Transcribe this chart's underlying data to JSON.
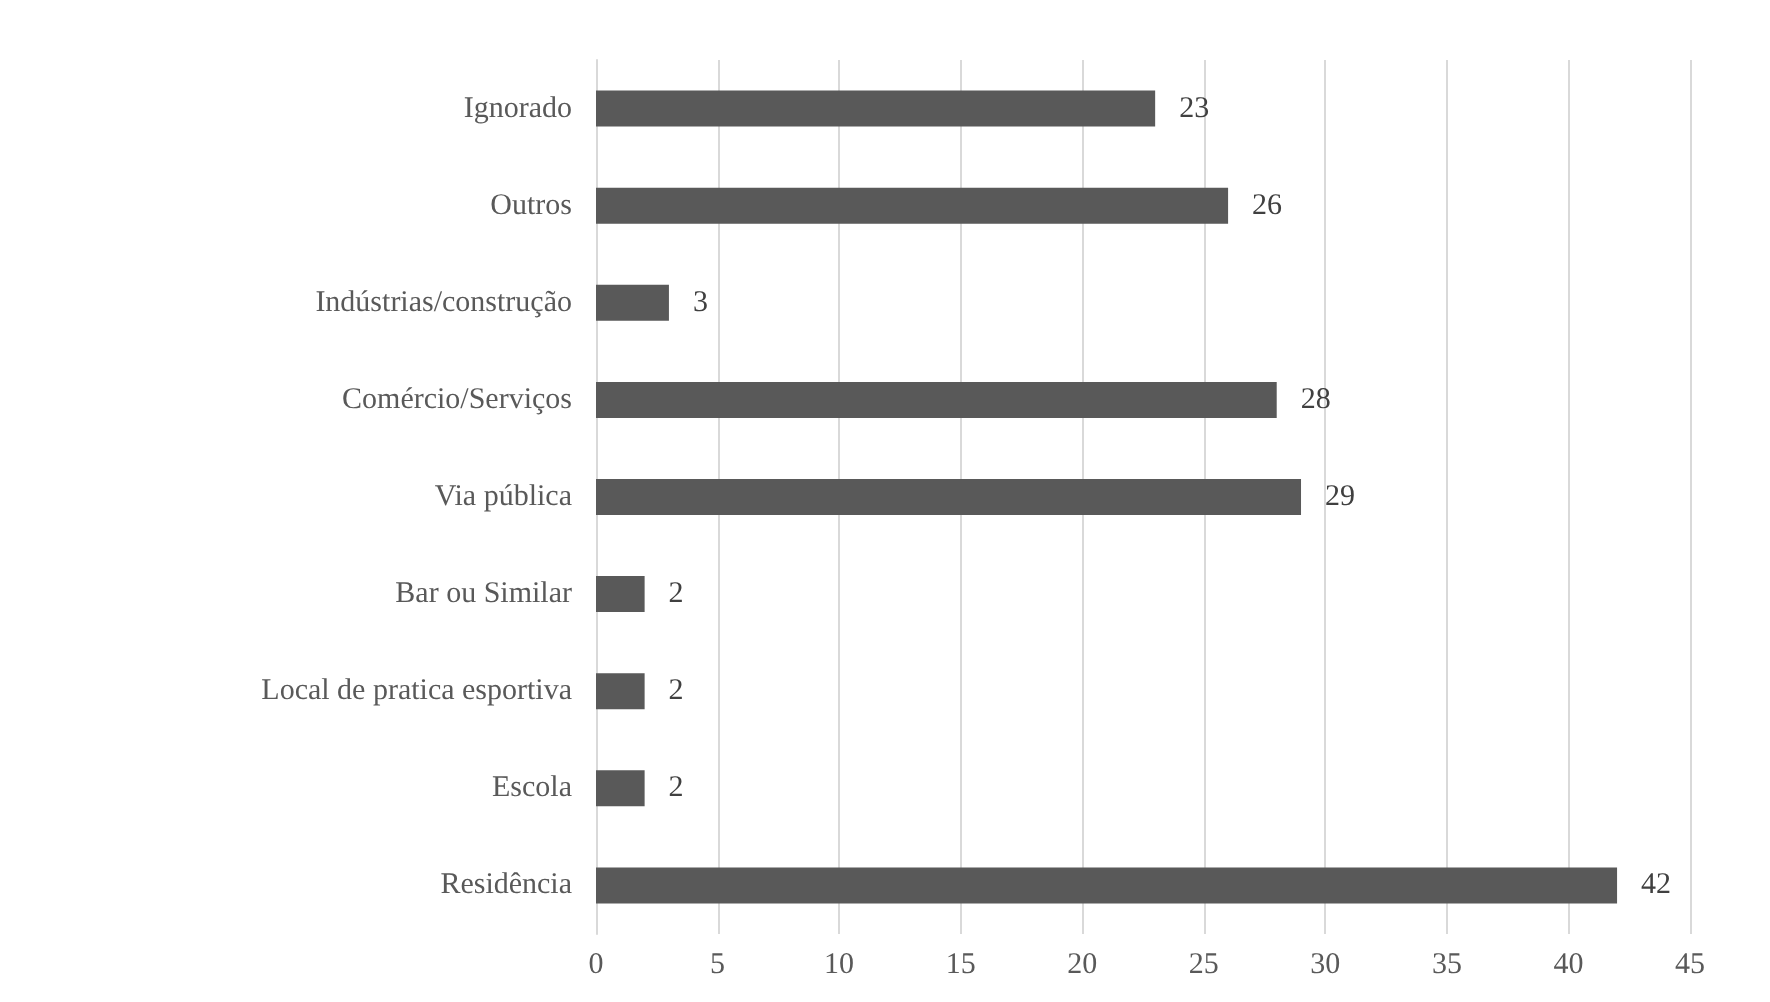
{
  "chart_data": {
    "type": "bar",
    "orientation": "horizontal",
    "categories": [
      "Ignorado",
      "Outros",
      "Indústrias/construção",
      "Comércio/Serviços",
      "Via pública",
      "Bar ou Similar",
      "Local de pratica esportiva",
      "Escola",
      "Residência"
    ],
    "values": [
      23,
      26,
      3,
      28,
      29,
      2,
      2,
      2,
      42
    ],
    "color": "#595959",
    "xlim": [
      0,
      45
    ],
    "xticks": [
      0,
      5,
      10,
      15,
      20,
      25,
      30,
      35,
      40,
      45
    ],
    "grid": "x",
    "data_labels": true
  }
}
